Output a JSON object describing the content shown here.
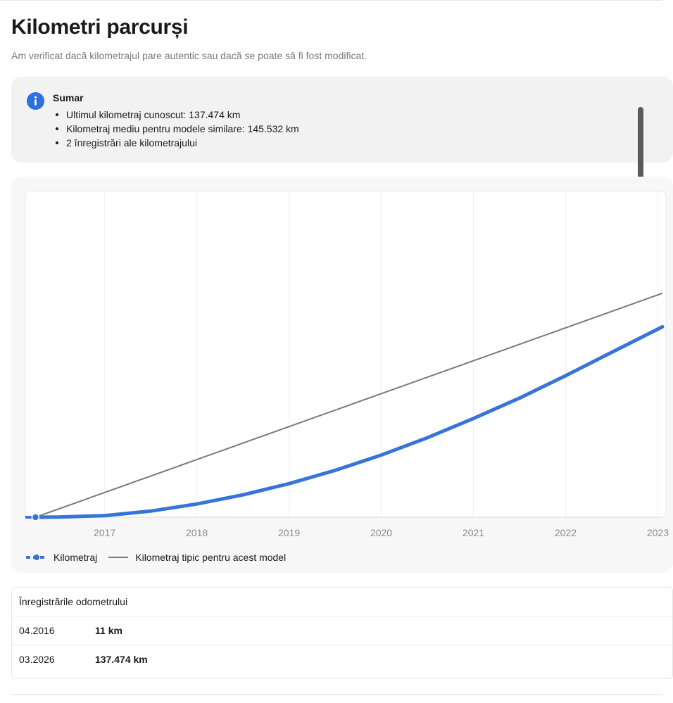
{
  "page": {
    "title": "Kilometri parcurși",
    "subtitle": "Am verificat dacă kilometrajul pare autentic sau dacă se poate să fi fost modificat."
  },
  "summary": {
    "title": "Sumar",
    "items": [
      "Ultimul kilometraj cunoscut: 137.474 km",
      "Kilometraj mediu pentru modele similare: 145.532 km",
      "2 înregistrări ale kilometrajului"
    ]
  },
  "legend": {
    "series_label": "Kilometraj",
    "typical_label": "Kilometraj tipic pentru acest model"
  },
  "records": {
    "header": "Înregistrările odometrului",
    "rows": [
      {
        "date": "04.2016",
        "value": "11 km"
      },
      {
        "date": "03.2026",
        "value": "137.474 km"
      }
    ]
  },
  "colors": {
    "accent": "#3874d8",
    "typical": "#7a7a7a",
    "info": "#2f6fe0"
  },
  "chart_data": {
    "type": "line",
    "title": "",
    "xlabel": "",
    "ylabel": "",
    "x_ticks": [
      "2017",
      "2018",
      "2019",
      "2020",
      "2021",
      "2022",
      "2023"
    ],
    "xlim": [
      2016.14,
      2023.05
    ],
    "ylim": [
      0,
      160000
    ],
    "grid": "vertical",
    "legend_position": "bottom-left",
    "series": [
      {
        "name": "Kilometraj",
        "style": "thick-blue",
        "x": [
          2016.25,
          2016.5,
          2017.0,
          2017.5,
          2018.0,
          2018.5,
          2019.0,
          2019.5,
          2020.0,
          2020.5,
          2021.0,
          2021.5,
          2022.0,
          2022.5,
          2023.05
        ],
        "y": [
          11,
          100,
          800,
          3000,
          6500,
          11000,
          16500,
          23000,
          30500,
          39000,
          48500,
          58500,
          69500,
          81000,
          93500
        ]
      },
      {
        "name": "Kilometraj tipic pentru acest model",
        "style": "thin-gray",
        "x": [
          2016.25,
          2023.05
        ],
        "y": [
          0,
          110000
        ]
      }
    ],
    "points": [
      {
        "x": 2016.25,
        "y": 11
      }
    ]
  }
}
